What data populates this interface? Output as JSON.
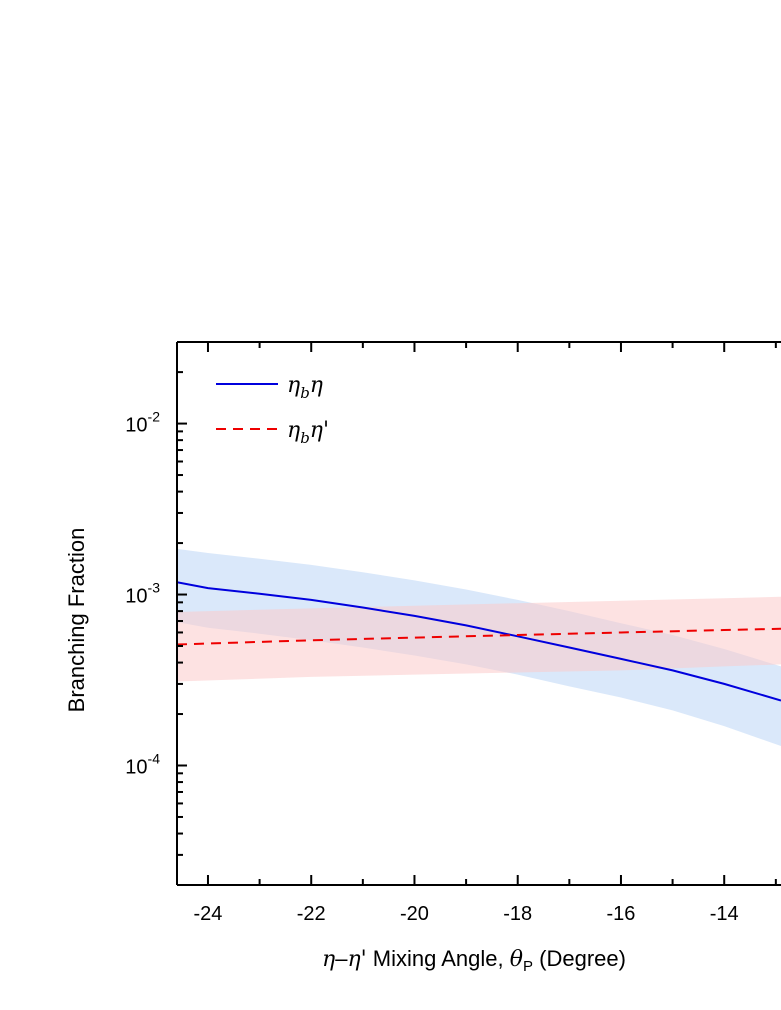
{
  "chart_data": {
    "type": "line",
    "xlabel": {
      "eta": "η",
      "dash": "–",
      "eta_prime": "η'",
      "rest": " Mixing Angle,  ",
      "theta": "θ",
      "theta_sub": "P",
      "unit": " (Degree)"
    },
    "ylabel": "Branching Fraction",
    "x_ticks": [
      -24,
      -22,
      -20,
      -18,
      -16,
      -14
    ],
    "y_ticks": [
      {
        "base": "10",
        "exp": "-2",
        "value": 0.01
      },
      {
        "base": "10",
        "exp": "-3",
        "value": 0.001
      },
      {
        "base": "10",
        "exp": "-4",
        "value": 0.0001
      }
    ],
    "xlim": [
      -24.6,
      -12.9
    ],
    "ylim": [
      2e-05,
      0.03
    ],
    "yscale": "log",
    "legend_position": "top-left",
    "series": [
      {
        "name_base": "η",
        "name_sub": "b",
        "name_tail": "η",
        "line_style": "solid",
        "color": "#0000dd",
        "band_color": "#bcd6f5",
        "x": [
          -24.6,
          -24,
          -23,
          -22,
          -21,
          -20,
          -19,
          -18,
          -17,
          -16,
          -15,
          -14,
          -12.9
        ],
        "values": [
          0.00118,
          0.00109,
          0.00101,
          0.00093,
          0.00084,
          0.00075,
          0.00066,
          0.00057,
          0.00049,
          0.00042,
          0.00036,
          0.0003,
          0.00024
        ],
        "band_upper": [
          0.00185,
          0.00175,
          0.00162,
          0.00149,
          0.00135,
          0.00121,
          0.00107,
          0.00093,
          0.0008,
          0.00068,
          0.00058,
          0.00048,
          0.00038
        ],
        "band_lower": [
          0.00069,
          0.00064,
          0.00059,
          0.00054,
          0.00049,
          0.00044,
          0.00039,
          0.00034,
          0.00029,
          0.00025,
          0.00021,
          0.00017,
          0.00013
        ]
      },
      {
        "name_base": "η",
        "name_sub": "b",
        "name_tail": "η'",
        "line_style": "dashed",
        "color": "#ee0000",
        "band_color": "#fbcaca",
        "x": [
          -24.6,
          -22,
          -20,
          -18,
          -16,
          -14,
          -12.9
        ],
        "values": [
          0.00051,
          0.00054,
          0.00056,
          0.00058,
          0.0006,
          0.00062,
          0.00063
        ],
        "band_upper": [
          0.00079,
          0.00083,
          0.00086,
          0.00089,
          0.00092,
          0.00095,
          0.00097
        ],
        "band_lower": [
          0.00031,
          0.00033,
          0.00034,
          0.00035,
          0.00036,
          0.00038,
          0.00039
        ]
      }
    ]
  }
}
